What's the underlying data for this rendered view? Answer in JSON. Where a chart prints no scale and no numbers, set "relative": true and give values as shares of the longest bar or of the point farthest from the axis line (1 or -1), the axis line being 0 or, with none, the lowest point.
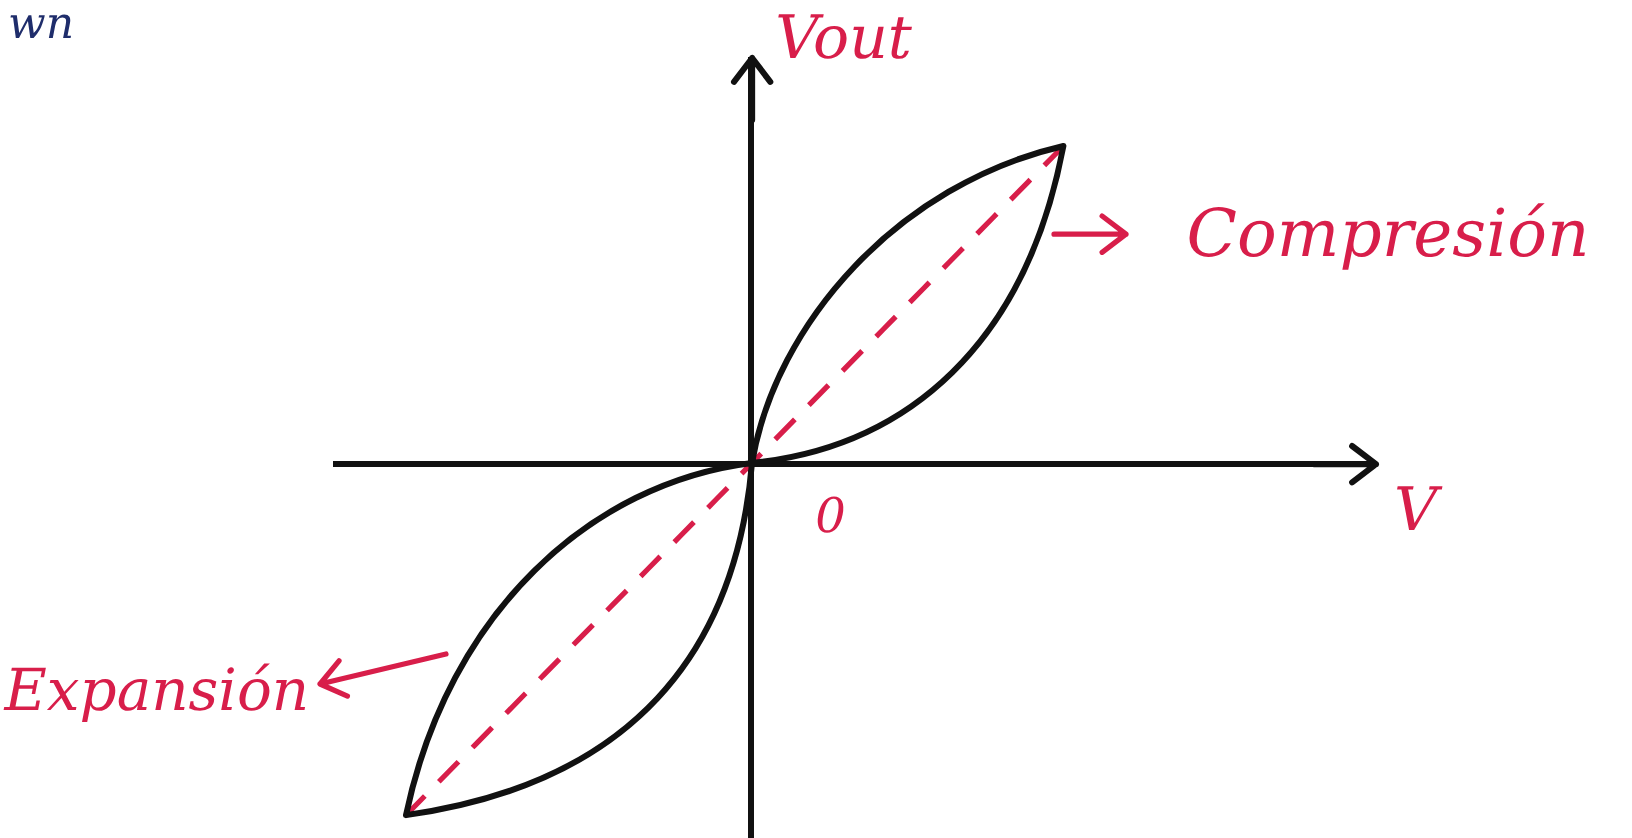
{
  "chart_data": {
    "type": "line",
    "title": "wn",
    "xlabel": "V",
    "ylabel": "Vout",
    "annotations": [
      "Compresión",
      "Expansión",
      "0"
    ],
    "relative": true,
    "categories": [
      null,
      null,
      null,
      null,
      null,
      null,
      null,
      null,
      null,
      null,
      null,
      null,
      null,
      null,
      null,
      null,
      null,
      null,
      null,
      null,
      null,
      null,
      null,
      null,
      null,
      null,
      null,
      null,
      null,
      null,
      null
    ],
    "series": [
      {
        "color": "#d81e4a",
        "line_style": "dashed",
        "values": [
          null,
          null,
          -1,
          -0.9,
          -0.8,
          -0.7,
          -0.6,
          -0.5,
          -0.4,
          -0.3,
          -0.2,
          -0.1,
          0,
          0.1,
          0.2,
          0.3,
          0.4,
          0.5,
          0.6,
          0.7,
          0.8,
          0.9,
          null,
          null,
          null,
          null,
          null,
          null,
          null,
          null,
          null
        ]
      }
    ]
  }
}
